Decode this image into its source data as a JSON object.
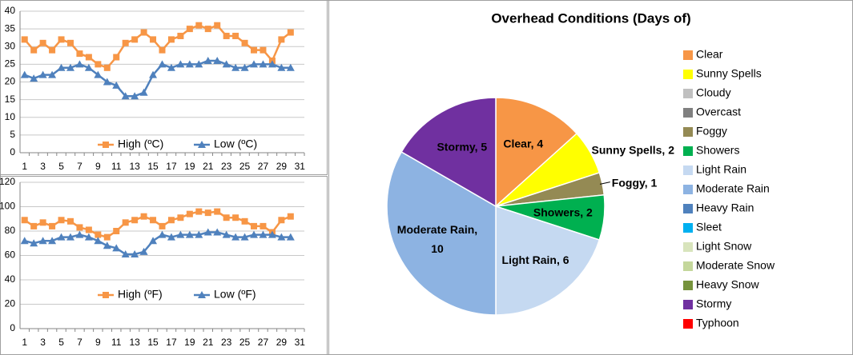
{
  "chart_data": [
    {
      "type": "line",
      "categories": [
        "1",
        null,
        "3",
        null,
        "5",
        null,
        "7",
        null,
        "9",
        null,
        "11",
        null,
        "13",
        null,
        "15",
        null,
        "17",
        null,
        "19",
        null,
        "21",
        null,
        "23",
        null,
        "25",
        null,
        "27",
        null,
        "29",
        null,
        "31"
      ],
      "series": [
        {
          "name": "High (ºC)",
          "color": "#f79646",
          "marker": "square",
          "values": [
            32,
            29,
            31,
            29,
            32,
            31,
            28,
            27,
            25,
            24,
            27,
            31,
            32,
            34,
            32,
            29,
            32,
            33,
            35,
            36,
            35,
            36,
            33,
            33,
            31,
            29,
            29,
            26,
            32,
            34,
            null
          ]
        },
        {
          "name": "Low (ºC)",
          "color": "#4f81bd",
          "marker": "triangle",
          "values": [
            22,
            21,
            22,
            22,
            24,
            24,
            25,
            24,
            22,
            20,
            19,
            16,
            16,
            17,
            22,
            25,
            24,
            25,
            25,
            25,
            26,
            26,
            25,
            24,
            24,
            25,
            25,
            25,
            24,
            24,
            null
          ]
        }
      ],
      "ylim": [
        0,
        40
      ],
      "yticks": [
        0,
        5,
        10,
        15,
        20,
        25,
        30,
        35,
        40
      ],
      "grid": true,
      "legend": "bottom"
    },
    {
      "type": "line",
      "categories": [
        "1",
        null,
        "3",
        null,
        "5",
        null,
        "7",
        null,
        "9",
        null,
        "11",
        null,
        "13",
        null,
        "15",
        null,
        "17",
        null,
        "19",
        null,
        "21",
        null,
        "23",
        null,
        "25",
        null,
        "27",
        null,
        "29",
        null,
        "31"
      ],
      "series": [
        {
          "name": "High (ºF)",
          "color": "#f79646",
          "marker": "square",
          "values": [
            89,
            84,
            87,
            84,
            89,
            88,
            83,
            81,
            77,
            75,
            80,
            87,
            89,
            92,
            89,
            84,
            89,
            91,
            94,
            96,
            95,
            96,
            91,
            91,
            88,
            84,
            84,
            79,
            89,
            92,
            null
          ]
        },
        {
          "name": "Low (ºF)",
          "color": "#4f81bd",
          "marker": "triangle",
          "values": [
            72,
            70,
            72,
            72,
            75,
            75,
            77,
            75,
            72,
            68,
            66,
            61,
            61,
            63,
            72,
            77,
            75,
            77,
            77,
            77,
            79,
            79,
            77,
            75,
            75,
            77,
            77,
            77,
            75,
            75,
            null
          ]
        }
      ],
      "ylim": [
        0,
        120
      ],
      "yticks": [
        0,
        20,
        40,
        60,
        80,
        100,
        120
      ],
      "grid": true,
      "legend": "bottom"
    },
    {
      "type": "pie",
      "title": "Overhead Conditions (Days of)",
      "categories": [
        "Clear",
        "Sunny Spells",
        "Cloudy",
        "Overcast",
        "Foggy",
        "Showers",
        "Light Rain",
        "Moderate Rain",
        "Heavy Rain",
        "Sleet",
        "Light Snow",
        "Moderate Snow",
        "Heavy Snow",
        "Stormy",
        "Typhoon"
      ],
      "values": [
        4,
        2,
        0,
        0,
        1,
        2,
        6,
        10,
        0,
        0,
        0,
        0,
        0,
        5,
        0
      ],
      "value_labels": [
        "Clear, 4",
        "Sunny Spells, 2",
        null,
        null,
        "Foggy, 1",
        "Showers, 2",
        "Light Rain, 6",
        "Moderate Rain, 10",
        null,
        null,
        null,
        null,
        null,
        "Stormy, 5",
        null
      ],
      "colors": [
        "#f79646",
        "#ffff00",
        "#c0c0c0",
        "#808080",
        "#948a54",
        "#00b050",
        "#c5d9f1",
        "#8db3e2",
        "#4f81bd",
        "#00b0f0",
        "#d8e4bc",
        "#c4d79b",
        "#76933c",
        "#7030a0",
        "#ff0000"
      ],
      "legend": "right"
    }
  ]
}
